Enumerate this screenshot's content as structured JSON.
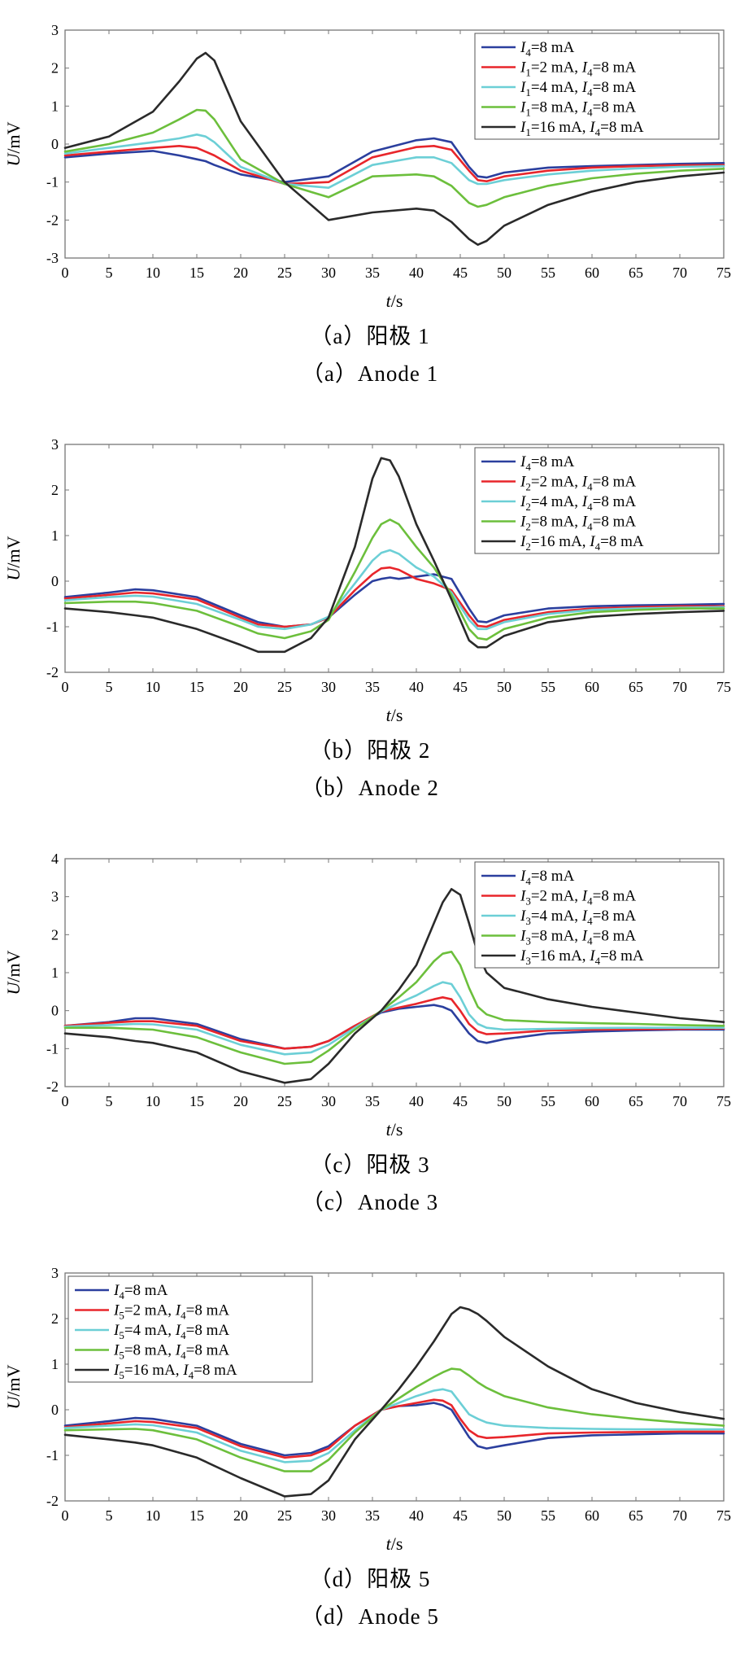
{
  "chart_data": [
    {
      "type": "line",
      "caption_cn": "（a）阳极 1",
      "caption_en": "（a）Anode 1",
      "xlabel_var": "t",
      "xlabel_unit": "s",
      "ylabel_var": "U",
      "ylabel_unit": "mV",
      "xlim": [
        0,
        75
      ],
      "ylim": [
        -3,
        3
      ],
      "xticks": [
        0,
        5,
        10,
        15,
        20,
        25,
        30,
        35,
        40,
        45,
        50,
        55,
        60,
        65,
        70,
        75
      ],
      "yticks": [
        -3,
        -2,
        -1,
        0,
        1,
        2,
        3
      ],
      "legend_position": "top-right",
      "x": [
        0,
        5,
        10,
        13,
        15,
        16,
        17,
        20,
        25,
        30,
        35,
        40,
        42,
        44,
        46,
        47,
        48,
        50,
        55,
        60,
        65,
        70,
        75
      ],
      "series": [
        {
          "name": "I4=8 mA",
          "label_parts": [
            [
              "I",
              "4",
              "=8 mA"
            ]
          ],
          "color": "#2b3f9e",
          "values": [
            -0.35,
            -0.25,
            -0.18,
            -0.3,
            -0.4,
            -0.45,
            -0.55,
            -0.8,
            -1.0,
            -0.85,
            -0.2,
            0.1,
            0.15,
            0.05,
            -0.6,
            -0.85,
            -0.88,
            -0.75,
            -0.62,
            -0.58,
            -0.55,
            -0.52,
            -0.5
          ]
        },
        {
          "name": "I1=2 mA, I4=8 mA",
          "label_parts": [
            [
              "I",
              "1",
              "=2 mA, "
            ],
            [
              "I",
              "4",
              "=8 mA"
            ]
          ],
          "color": "#e8262b",
          "values": [
            -0.3,
            -0.2,
            -0.1,
            -0.05,
            -0.1,
            -0.2,
            -0.3,
            -0.7,
            -1.05,
            -1.0,
            -0.35,
            -0.08,
            -0.05,
            -0.15,
            -0.7,
            -0.95,
            -0.98,
            -0.85,
            -0.7,
            -0.62,
            -0.58,
            -0.56,
            -0.55
          ]
        },
        {
          "name": "I1=4 mA, I4=8 mA",
          "label_parts": [
            [
              "I",
              "1",
              "=4 mA, "
            ],
            [
              "I",
              "4",
              "=8 mA"
            ]
          ],
          "color": "#6ccfd6",
          "values": [
            -0.25,
            -0.1,
            0.05,
            0.15,
            0.25,
            0.2,
            0.05,
            -0.6,
            -1.05,
            -1.15,
            -0.55,
            -0.35,
            -0.35,
            -0.5,
            -0.95,
            -1.05,
            -1.05,
            -0.95,
            -0.8,
            -0.7,
            -0.64,
            -0.6,
            -0.58
          ]
        },
        {
          "name": "I1=8 mA, I4=8 mA",
          "label_parts": [
            [
              "I",
              "1",
              "=8 mA, "
            ],
            [
              "I",
              "4",
              "=8 mA"
            ]
          ],
          "color": "#6cbf3c",
          "values": [
            -0.2,
            0.0,
            0.3,
            0.65,
            0.9,
            0.88,
            0.65,
            -0.4,
            -1.05,
            -1.4,
            -0.85,
            -0.8,
            -0.85,
            -1.1,
            -1.55,
            -1.65,
            -1.6,
            -1.4,
            -1.1,
            -0.9,
            -0.78,
            -0.7,
            -0.65
          ]
        },
        {
          "name": "I1=16 mA, I4=8 mA",
          "label_parts": [
            [
              "I",
              "1",
              "=16 mA, "
            ],
            [
              "I",
              "4",
              "=8 mA"
            ]
          ],
          "color": "#2a2a2a",
          "values": [
            -0.1,
            0.2,
            0.85,
            1.65,
            2.25,
            2.4,
            2.2,
            0.6,
            -1.0,
            -2.0,
            -1.8,
            -1.7,
            -1.75,
            -2.05,
            -2.5,
            -2.65,
            -2.55,
            -2.15,
            -1.6,
            -1.25,
            -1.0,
            -0.85,
            -0.75
          ]
        }
      ]
    },
    {
      "type": "line",
      "caption_cn": "（b）阳极 2",
      "caption_en": "（b）Anode 2",
      "xlabel_var": "t",
      "xlabel_unit": "s",
      "ylabel_var": "U",
      "ylabel_unit": "mV",
      "xlim": [
        0,
        75
      ],
      "ylim": [
        -2,
        3
      ],
      "xticks": [
        0,
        5,
        10,
        15,
        20,
        25,
        30,
        35,
        40,
        45,
        50,
        55,
        60,
        65,
        70,
        75
      ],
      "yticks": [
        -2,
        -1,
        0,
        1,
        2,
        3
      ],
      "legend_position": "top-right",
      "x": [
        0,
        5,
        8,
        10,
        15,
        20,
        22,
        25,
        28,
        30,
        33,
        35,
        36,
        37,
        38,
        40,
        42,
        44,
        46,
        47,
        48,
        50,
        55,
        60,
        65,
        70,
        75
      ],
      "series": [
        {
          "name": "I4=8 mA",
          "label_parts": [
            [
              "I",
              "4",
              "=8 mA"
            ]
          ],
          "color": "#2b3f9e",
          "values": [
            -0.35,
            -0.25,
            -0.18,
            -0.2,
            -0.35,
            -0.75,
            -0.9,
            -1.0,
            -0.95,
            -0.8,
            -0.3,
            0.0,
            0.05,
            0.08,
            0.05,
            0.1,
            0.15,
            0.05,
            -0.6,
            -0.88,
            -0.9,
            -0.75,
            -0.6,
            -0.55,
            -0.53,
            -0.52,
            -0.5
          ]
        },
        {
          "name": "I2=2 mA, I4=8 mA",
          "label_parts": [
            [
              "I",
              "2",
              "=2 mA, "
            ],
            [
              "I",
              "4",
              "=8 mA"
            ]
          ],
          "color": "#e8262b",
          "values": [
            -0.38,
            -0.3,
            -0.25,
            -0.27,
            -0.4,
            -0.8,
            -0.95,
            -1.0,
            -0.95,
            -0.8,
            -0.2,
            0.15,
            0.28,
            0.3,
            0.25,
            0.05,
            -0.05,
            -0.2,
            -0.75,
            -0.98,
            -1.0,
            -0.85,
            -0.68,
            -0.6,
            -0.57,
            -0.55,
            -0.55
          ]
        },
        {
          "name": "I2=4 mA, I4=8 mA",
          "label_parts": [
            [
              "I",
              "2",
              "=4 mA, "
            ],
            [
              "I",
              "4",
              "=8 mA"
            ]
          ],
          "color": "#6ccfd6",
          "values": [
            -0.42,
            -0.35,
            -0.32,
            -0.34,
            -0.5,
            -0.85,
            -1.0,
            -1.05,
            -0.95,
            -0.78,
            -0.05,
            0.45,
            0.62,
            0.68,
            0.6,
            0.3,
            0.1,
            -0.25,
            -0.85,
            -1.05,
            -1.05,
            -0.9,
            -0.72,
            -0.63,
            -0.6,
            -0.58,
            -0.57
          ]
        },
        {
          "name": "I2=8 mA, I4=8 mA",
          "label_parts": [
            [
              "I",
              "2",
              "=8 mA, "
            ],
            [
              "I",
              "4",
              "=8 mA"
            ]
          ],
          "color": "#6cbf3c",
          "values": [
            -0.48,
            -0.45,
            -0.45,
            -0.48,
            -0.65,
            -1.0,
            -1.15,
            -1.25,
            -1.1,
            -0.85,
            0.2,
            0.95,
            1.25,
            1.35,
            1.25,
            0.75,
            0.3,
            -0.3,
            -1.05,
            -1.25,
            -1.28,
            -1.05,
            -0.8,
            -0.68,
            -0.63,
            -0.6,
            -0.6
          ]
        },
        {
          "name": "I2=16 mA, I4=8 mA",
          "label_parts": [
            [
              "I",
              "2",
              "=16 mA, "
            ],
            [
              "I",
              "4",
              "=8 mA"
            ]
          ],
          "color": "#2a2a2a",
          "values": [
            -0.6,
            -0.68,
            -0.75,
            -0.8,
            -1.05,
            -1.4,
            -1.55,
            -1.55,
            -1.25,
            -0.8,
            0.75,
            2.25,
            2.7,
            2.65,
            2.3,
            1.25,
            0.45,
            -0.4,
            -1.3,
            -1.45,
            -1.45,
            -1.2,
            -0.9,
            -0.78,
            -0.72,
            -0.68,
            -0.65
          ]
        }
      ]
    },
    {
      "type": "line",
      "caption_cn": "（c）阳极 3",
      "caption_en": "（c）Anode 3",
      "xlabel_var": "t",
      "xlabel_unit": "s",
      "ylabel_var": "U",
      "ylabel_unit": "mV",
      "xlim": [
        0,
        75
      ],
      "ylim": [
        -2,
        4
      ],
      "xticks": [
        0,
        5,
        10,
        15,
        20,
        25,
        30,
        35,
        40,
        45,
        50,
        55,
        60,
        65,
        70,
        75
      ],
      "yticks": [
        -2,
        -1,
        0,
        1,
        2,
        3,
        4
      ],
      "legend_position": "top-right",
      "x": [
        0,
        5,
        8,
        10,
        15,
        20,
        25,
        28,
        30,
        33,
        36,
        38,
        40,
        42,
        43,
        44,
        45,
        46,
        47,
        48,
        50,
        55,
        60,
        65,
        70,
        75
      ],
      "series": [
        {
          "name": "I4=8 mA",
          "label_parts": [
            [
              "I",
              "4",
              "=8 mA"
            ]
          ],
          "color": "#2b3f9e",
          "values": [
            -0.4,
            -0.3,
            -0.2,
            -0.2,
            -0.35,
            -0.75,
            -1.0,
            -0.95,
            -0.8,
            -0.4,
            -0.05,
            0.05,
            0.1,
            0.15,
            0.1,
            0.0,
            -0.3,
            -0.6,
            -0.8,
            -0.85,
            -0.75,
            -0.6,
            -0.55,
            -0.52,
            -0.5,
            -0.5
          ]
        },
        {
          "name": "I3=2 mA, I4=8 mA",
          "label_parts": [
            [
              "I",
              "3",
              "=2 mA, "
            ],
            [
              "I",
              "4",
              "=8 mA"
            ]
          ],
          "color": "#e8262b",
          "values": [
            -0.4,
            -0.32,
            -0.28,
            -0.28,
            -0.4,
            -0.8,
            -1.0,
            -0.95,
            -0.8,
            -0.4,
            -0.02,
            0.08,
            0.18,
            0.3,
            0.35,
            0.3,
            0.0,
            -0.35,
            -0.55,
            -0.62,
            -0.6,
            -0.52,
            -0.5,
            -0.49,
            -0.48,
            -0.47
          ]
        },
        {
          "name": "I3=4 mA, I4=8 mA",
          "label_parts": [
            [
              "I",
              "3",
              "=4 mA, "
            ],
            [
              "I",
              "4",
              "=8 mA"
            ]
          ],
          "color": "#6ccfd6",
          "values": [
            -0.42,
            -0.38,
            -0.35,
            -0.36,
            -0.5,
            -0.9,
            -1.15,
            -1.1,
            -0.9,
            -0.45,
            -0.02,
            0.2,
            0.4,
            0.65,
            0.75,
            0.7,
            0.35,
            -0.1,
            -0.35,
            -0.45,
            -0.5,
            -0.48,
            -0.46,
            -0.45,
            -0.45,
            -0.45
          ]
        },
        {
          "name": "I3=8 mA, I4=8 mA",
          "label_parts": [
            [
              "I",
              "3",
              "=8 mA, "
            ],
            [
              "I",
              "4",
              "=8 mA"
            ]
          ],
          "color": "#6cbf3c",
          "values": [
            -0.45,
            -0.45,
            -0.48,
            -0.5,
            -0.7,
            -1.1,
            -1.4,
            -1.35,
            -1.05,
            -0.5,
            0.0,
            0.35,
            0.75,
            1.3,
            1.5,
            1.55,
            1.2,
            0.6,
            0.1,
            -0.1,
            -0.25,
            -0.3,
            -0.33,
            -0.35,
            -0.38,
            -0.4
          ]
        },
        {
          "name": "I3=16 mA, I4=8 mA",
          "label_parts": [
            [
              "I",
              "3",
              "=16 mA, "
            ],
            [
              "I",
              "4",
              "=8 mA"
            ]
          ],
          "color": "#2a2a2a",
          "values": [
            -0.6,
            -0.7,
            -0.8,
            -0.85,
            -1.1,
            -1.6,
            -1.9,
            -1.8,
            -1.4,
            -0.6,
            0.0,
            0.55,
            1.2,
            2.3,
            2.85,
            3.2,
            3.05,
            2.3,
            1.5,
            1.0,
            0.6,
            0.3,
            0.1,
            -0.05,
            -0.2,
            -0.3
          ]
        }
      ]
    },
    {
      "type": "line",
      "caption_cn": "（d）阳极 5",
      "caption_en": "（d）Anode 5",
      "xlabel_var": "t",
      "xlabel_unit": "s",
      "ylabel_var": "U",
      "ylabel_unit": "mV",
      "xlim": [
        0,
        75
      ],
      "ylim": [
        -2,
        3
      ],
      "xticks": [
        0,
        5,
        10,
        15,
        20,
        25,
        30,
        35,
        40,
        45,
        50,
        55,
        60,
        65,
        70,
        75
      ],
      "yticks": [
        -2,
        -1,
        0,
        1,
        2,
        3
      ],
      "legend_position": "top-left",
      "x": [
        0,
        5,
        8,
        10,
        15,
        20,
        25,
        28,
        30,
        33,
        36,
        38,
        40,
        42,
        43,
        44,
        45,
        46,
        47,
        48,
        50,
        55,
        60,
        65,
        70,
        75
      ],
      "series": [
        {
          "name": "I4=8 mA",
          "label_parts": [
            [
              "I",
              "4",
              "=8 mA"
            ]
          ],
          "color": "#2b3f9e",
          "values": [
            -0.35,
            -0.25,
            -0.18,
            -0.2,
            -0.35,
            -0.75,
            -1.0,
            -0.95,
            -0.8,
            -0.35,
            0.0,
            0.08,
            0.1,
            0.15,
            0.1,
            0.0,
            -0.3,
            -0.6,
            -0.8,
            -0.85,
            -0.78,
            -0.62,
            -0.56,
            -0.54,
            -0.52,
            -0.52
          ]
        },
        {
          "name": "I5=2 mA, I4=8 mA",
          "label_parts": [
            [
              "I",
              "5",
              "=2 mA, "
            ],
            [
              "I",
              "4",
              "=8 mA"
            ]
          ],
          "color": "#e8262b",
          "values": [
            -0.38,
            -0.3,
            -0.25,
            -0.27,
            -0.4,
            -0.8,
            -1.05,
            -1.0,
            -0.85,
            -0.35,
            0.0,
            0.08,
            0.15,
            0.22,
            0.2,
            0.1,
            -0.2,
            -0.45,
            -0.58,
            -0.62,
            -0.6,
            -0.52,
            -0.5,
            -0.49,
            -0.48,
            -0.48
          ]
        },
        {
          "name": "I5=4 mA, I4=8 mA",
          "label_parts": [
            [
              "I",
              "5",
              "=4 mA, "
            ],
            [
              "I",
              "4",
              "=8 mA"
            ]
          ],
          "color": "#6ccfd6",
          "values": [
            -0.4,
            -0.35,
            -0.32,
            -0.34,
            -0.5,
            -0.9,
            -1.15,
            -1.12,
            -0.95,
            -0.45,
            0.0,
            0.15,
            0.3,
            0.42,
            0.45,
            0.4,
            0.15,
            -0.1,
            -0.2,
            -0.28,
            -0.35,
            -0.4,
            -0.42,
            -0.43,
            -0.43,
            -0.43
          ]
        },
        {
          "name": "I5=8 mA, I4=8 mA",
          "label_parts": [
            [
              "I",
              "5",
              "=8 mA, "
            ],
            [
              "I",
              "4",
              "=8 mA"
            ]
          ],
          "color": "#6cbf3c",
          "values": [
            -0.45,
            -0.43,
            -0.42,
            -0.45,
            -0.65,
            -1.05,
            -1.35,
            -1.35,
            -1.1,
            -0.5,
            0.0,
            0.25,
            0.5,
            0.72,
            0.82,
            0.9,
            0.88,
            0.75,
            0.6,
            0.48,
            0.3,
            0.05,
            -0.1,
            -0.2,
            -0.28,
            -0.35
          ]
        },
        {
          "name": "I5=16 mA, I4=8 mA",
          "label_parts": [
            [
              "I",
              "5",
              "=16 mA, "
            ],
            [
              "I",
              "4",
              "=8 mA"
            ]
          ],
          "color": "#2a2a2a",
          "values": [
            -0.55,
            -0.65,
            -0.72,
            -0.78,
            -1.05,
            -1.5,
            -1.9,
            -1.85,
            -1.55,
            -0.65,
            0.0,
            0.45,
            0.95,
            1.5,
            1.8,
            2.1,
            2.25,
            2.2,
            2.1,
            1.95,
            1.6,
            0.95,
            0.45,
            0.15,
            -0.05,
            -0.2
          ]
        }
      ]
    }
  ]
}
